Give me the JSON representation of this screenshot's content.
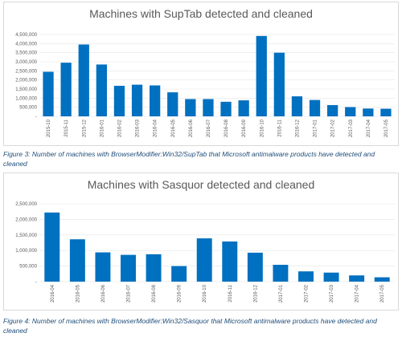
{
  "chart_data": [
    {
      "type": "bar",
      "title": "Machines with SupTab detected and cleaned",
      "categories": [
        "2015-10",
        "2015-11",
        "2015-12",
        "2016-01",
        "2016-02",
        "2016-03",
        "2016-04",
        "2016-05",
        "2016-06",
        "2016-07",
        "2016-08",
        "2016-09",
        "2016-10",
        "2016-11",
        "2016-12",
        "2017-01",
        "2017-02",
        "2017-03",
        "2017-04",
        "2017-05"
      ],
      "values": [
        2450000,
        2950000,
        3950000,
        2850000,
        1680000,
        1740000,
        1700000,
        1320000,
        950000,
        950000,
        800000,
        880000,
        4420000,
        3500000,
        1100000,
        900000,
        620000,
        510000,
        430000,
        420000
      ],
      "yticks": [
        "4,500,000",
        "4,000,000",
        "3,500,000",
        "3,000,000",
        "2,500,000",
        "2,000,000",
        "1,500,000",
        "1,000,000",
        "500,000",
        "-"
      ],
      "ylim": [
        0,
        4500000
      ],
      "color": "#0070c0",
      "grid": true,
      "legend": "none",
      "xlabel": "",
      "ylabel": ""
    },
    {
      "type": "bar",
      "title": "Machines with Sasquor detected and cleaned",
      "categories": [
        "2016-04",
        "2016-05",
        "2016-06",
        "2016-07",
        "2016-08",
        "2016-09",
        "2016-10",
        "2016-11",
        "2016-12",
        "2017-01",
        "2017-02",
        "2017-03",
        "2017-04",
        "2017-05"
      ],
      "values": [
        2220000,
        1360000,
        940000,
        860000,
        880000,
        500000,
        1390000,
        1290000,
        930000,
        540000,
        330000,
        290000,
        200000,
        140000
      ],
      "yticks": [
        "2,500,000",
        "2,000,000",
        "1,500,000",
        "1,000,000",
        "500,000",
        "-"
      ],
      "ylim": [
        0,
        2500000
      ],
      "color": "#0070c0",
      "grid": true,
      "legend": "none",
      "xlabel": "",
      "ylabel": ""
    }
  ],
  "captions": {
    "fig3": "Figure 3: Number of machines with BrowserModifier:Win32/SupTab that Microsoft antimalware products have detected and cleaned",
    "fig4": "Figure 4: Number of machines with BrowserModifier:Win32/Sasquor that Microsoft antimalware products have detected and cleaned"
  }
}
